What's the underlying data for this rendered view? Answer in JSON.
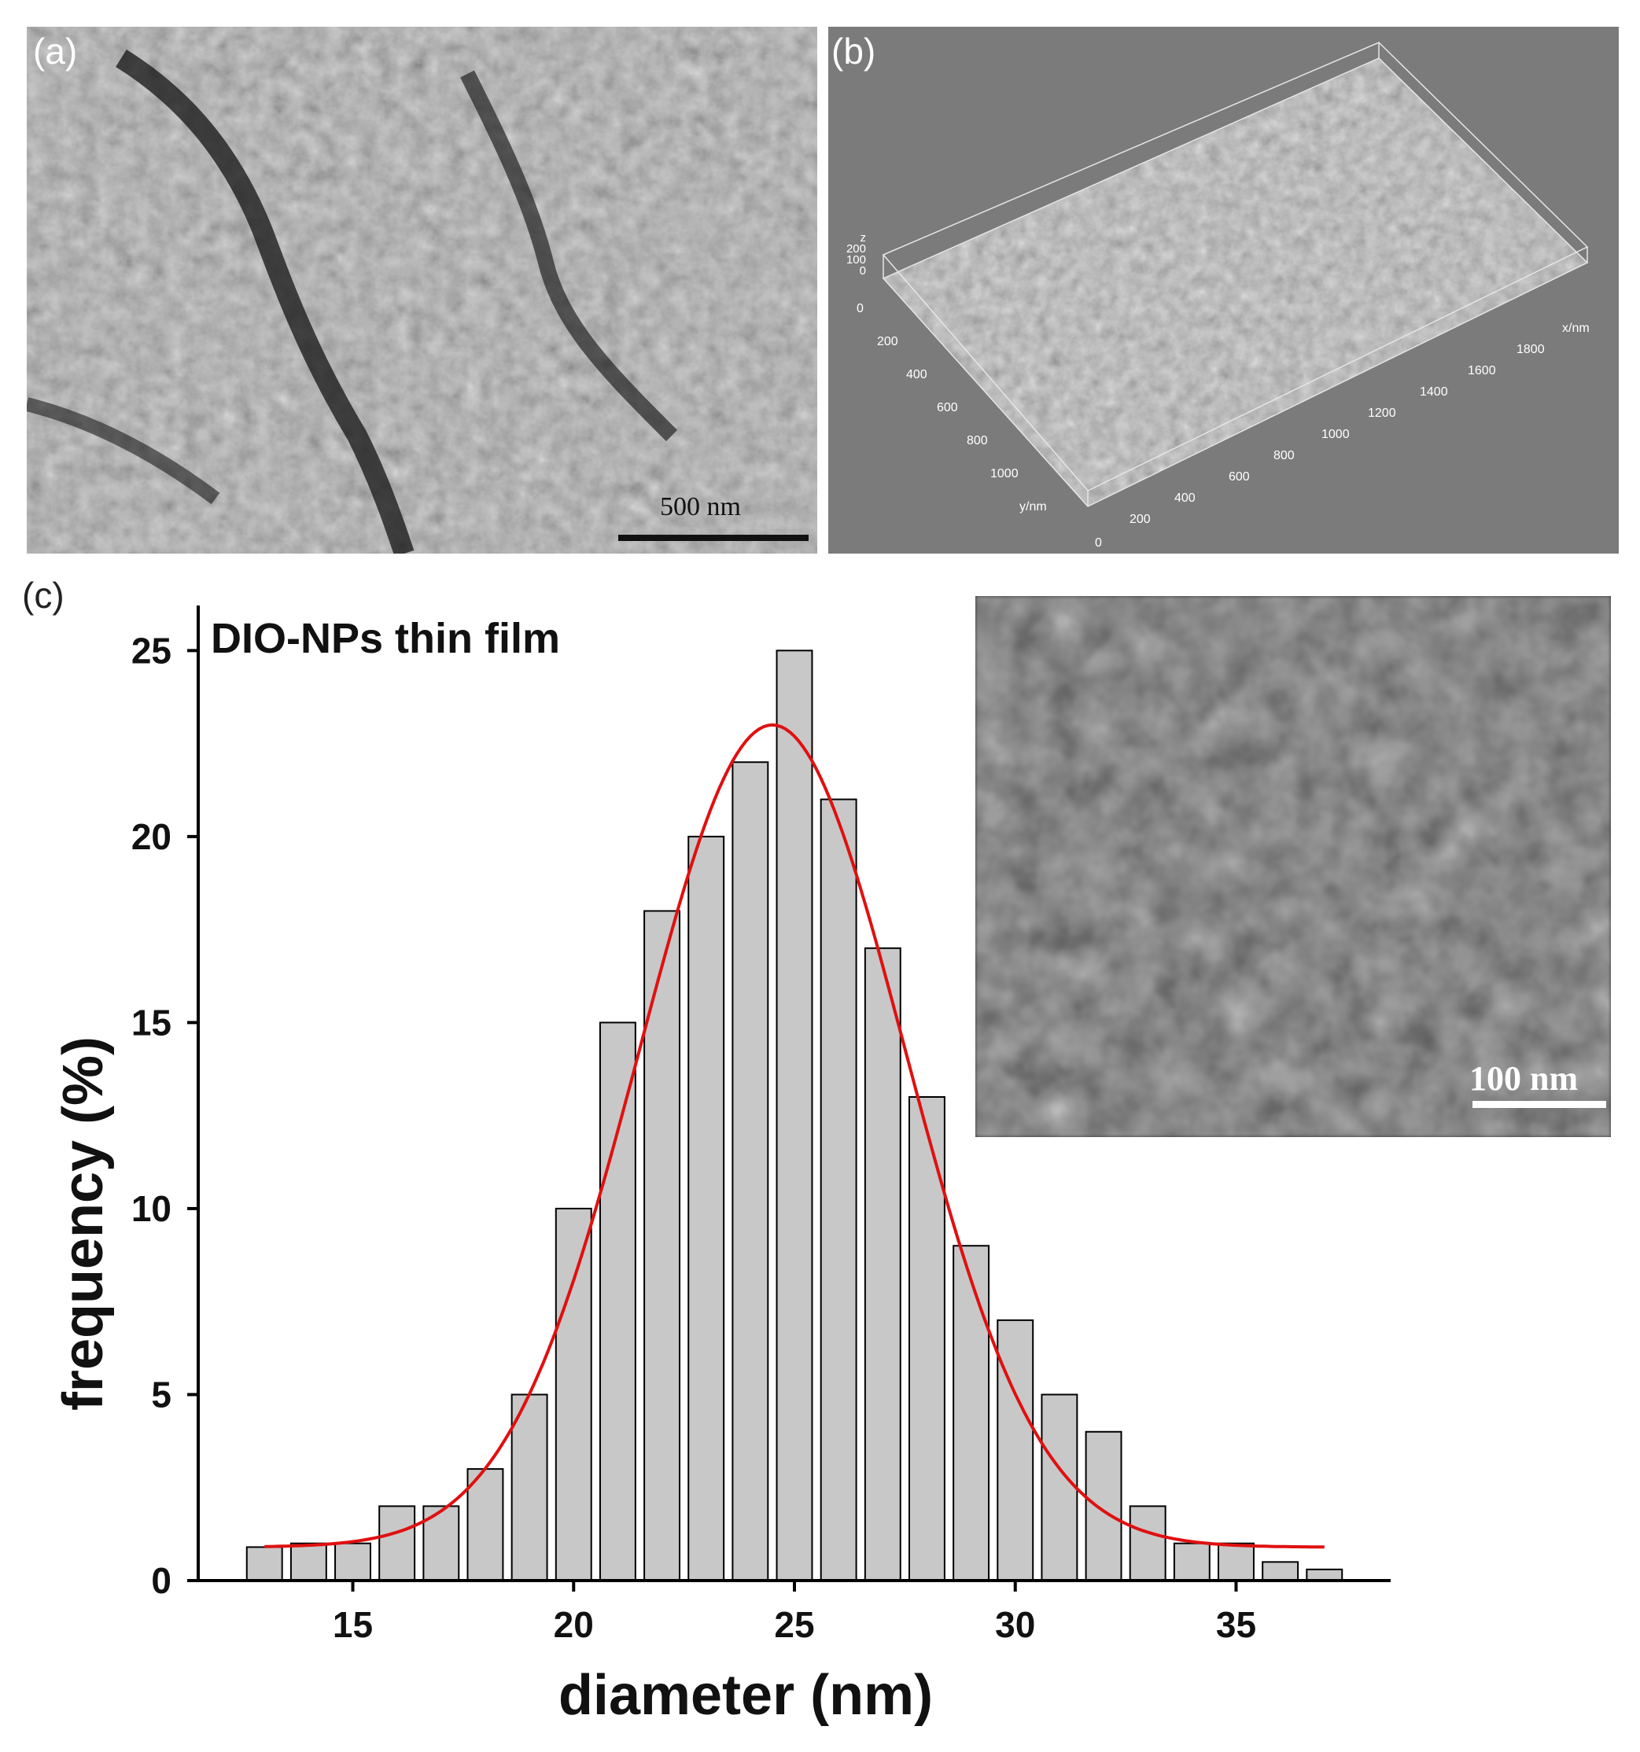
{
  "panels": {
    "a": {
      "label": "(a)",
      "scale_bar": "500 nm"
    },
    "b": {
      "label": "(b)",
      "z_axis": {
        "title": "z",
        "ticks": [
          "200",
          "100",
          "0"
        ]
      },
      "origin_tick": "0",
      "y_axis": {
        "title": "y/nm",
        "ticks": [
          "200",
          "400",
          "600",
          "800",
          "1000"
        ]
      },
      "x_axis": {
        "title": "x/nm",
        "ticks": [
          "200",
          "400",
          "600",
          "800",
          "1000",
          "1200",
          "1400",
          "1600",
          "1800"
        ]
      },
      "x_origin_tick": "0"
    },
    "c": {
      "label": "(c)",
      "inset_scale_bar": "100 nm"
    }
  },
  "chart_data": {
    "type": "bar",
    "title": "DIO-NPs thin film",
    "xlabel": "diameter (nm)",
    "ylabel": "frequency (%)",
    "xlim": [
      11.5,
      38.5
    ],
    "ylim": [
      0,
      26
    ],
    "xticks": [
      15,
      20,
      25,
      30,
      35
    ],
    "yticks": [
      0,
      5,
      10,
      15,
      20,
      25
    ],
    "bar_width": 0.8,
    "x": [
      13,
      14,
      15,
      16,
      17,
      18,
      19,
      20,
      21,
      22,
      23,
      24,
      25,
      26,
      27,
      28,
      29,
      30,
      31,
      32,
      33,
      34,
      35,
      36,
      37
    ],
    "values": [
      0.9,
      1,
      1,
      2,
      2,
      3,
      5,
      10,
      15,
      18,
      20,
      22,
      25,
      21,
      17,
      13,
      9,
      7,
      5,
      4,
      2,
      1,
      1,
      0.5,
      0.3
    ],
    "bar_color": "#c8c8c8",
    "fit": {
      "type": "gaussian",
      "color": "#e01010",
      "y0": 0.9,
      "amplitude": 22.1,
      "center": 24.5,
      "sigma": 3.0,
      "x_range": [
        13,
        37
      ]
    }
  }
}
